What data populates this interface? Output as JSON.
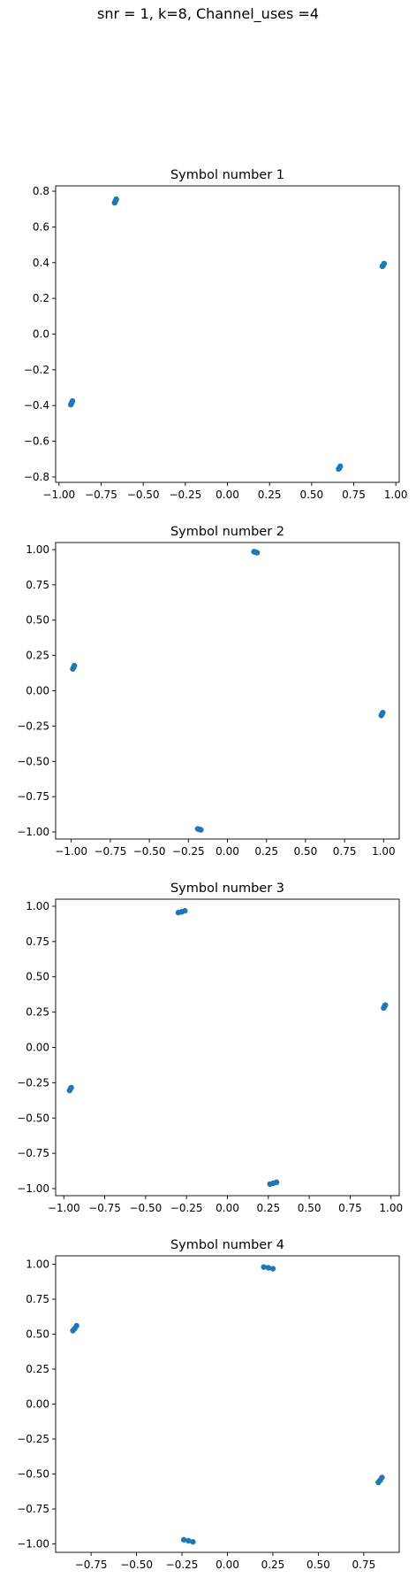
{
  "suptitle": "snr = 1, k=8, Channel_uses =4",
  "colors": {
    "marker": "#1f77b4"
  },
  "chart_data": [
    {
      "type": "scatter",
      "title": "Symbol number 1",
      "xlim": [
        -1.02,
        1.02
      ],
      "ylim": [
        -0.83,
        0.83
      ],
      "xticks": [
        -1.0,
        -0.75,
        -0.5,
        -0.25,
        0.0,
        0.25,
        0.5,
        0.75,
        1.0
      ],
      "xtick_labels": [
        "−1.00",
        "−0.75",
        "−0.50",
        "−0.25",
        "0.00",
        "0.25",
        "0.50",
        "0.75",
        "1.00"
      ],
      "yticks": [
        -0.8,
        -0.6,
        -0.4,
        -0.2,
        0.0,
        0.2,
        0.4,
        0.6,
        0.8
      ],
      "ytick_labels": [
        "−0.8",
        "−0.6",
        "−0.4",
        "−0.2",
        "0.0",
        "0.2",
        "0.4",
        "0.6",
        "0.8"
      ],
      "series": [
        {
          "x": [
            -0.67,
            -0.665,
            -0.66,
            0.92,
            0.925,
            0.93,
            -0.93,
            -0.925,
            -0.92,
            0.66,
            0.665,
            0.67
          ],
          "y": [
            0.735,
            0.745,
            0.755,
            0.38,
            0.385,
            0.395,
            -0.395,
            -0.385,
            -0.375,
            -0.755,
            -0.75,
            -0.74
          ]
        }
      ]
    },
    {
      "type": "scatter",
      "title": "Symbol number 2",
      "xlim": [
        -1.1,
        1.1
      ],
      "ylim": [
        -1.05,
        1.05
      ],
      "xticks": [
        -1.0,
        -0.75,
        -0.5,
        -0.25,
        0.0,
        0.25,
        0.5,
        0.75,
        1.0
      ],
      "xtick_labels": [
        "−1.00",
        "−0.75",
        "−0.50",
        "−0.25",
        "0.00",
        "0.25",
        "0.50",
        "0.75",
        "1.00"
      ],
      "yticks": [
        -1.0,
        -0.75,
        -0.5,
        -0.25,
        0.0,
        0.25,
        0.5,
        0.75,
        1.0
      ],
      "ytick_labels": [
        "−1.00",
        "−0.75",
        "−0.50",
        "−0.25",
        "0.00",
        "0.25",
        "0.50",
        "0.75",
        "1.00"
      ],
      "series": [
        {
          "x": [
            0.17,
            0.18,
            0.19,
            0.985,
            0.99,
            0.995,
            -0.99,
            -0.985,
            -0.98,
            -0.19,
            -0.18,
            -0.17
          ],
          "y": [
            0.985,
            0.982,
            0.978,
            -0.175,
            -0.165,
            -0.155,
            0.155,
            0.165,
            0.178,
            -0.978,
            -0.982,
            -0.985
          ]
        }
      ]
    },
    {
      "type": "scatter",
      "title": "Symbol number 3",
      "xlim": [
        -1.05,
        1.05
      ],
      "ylim": [
        -1.05,
        1.05
      ],
      "xticks": [
        -1.0,
        -0.75,
        -0.5,
        -0.25,
        0.0,
        0.25,
        0.5,
        0.75,
        1.0
      ],
      "xtick_labels": [
        "−1.00",
        "−0.75",
        "−0.50",
        "−0.25",
        "0.00",
        "0.25",
        "0.50",
        "0.75",
        "1.00"
      ],
      "yticks": [
        -1.0,
        -0.75,
        -0.5,
        -0.25,
        0.0,
        0.25,
        0.5,
        0.75,
        1.0
      ],
      "ytick_labels": [
        "−1.00",
        "−0.75",
        "−0.50",
        "−0.25",
        "0.00",
        "0.25",
        "0.50",
        "0.75",
        "1.00"
      ],
      "series": [
        {
          "x": [
            -0.3,
            -0.28,
            -0.26,
            0.955,
            0.96,
            0.965,
            -0.965,
            -0.96,
            -0.955,
            0.26,
            0.28,
            0.3
          ],
          "y": [
            0.955,
            0.96,
            0.968,
            0.28,
            0.29,
            0.3,
            -0.305,
            -0.295,
            -0.285,
            -0.968,
            -0.962,
            -0.955
          ]
        }
      ]
    },
    {
      "type": "scatter",
      "title": "Symbol number 4",
      "xlim": [
        -0.945,
        0.945
      ],
      "ylim": [
        -1.06,
        1.06
      ],
      "xticks": [
        -0.75,
        -0.5,
        -0.25,
        0.0,
        0.25,
        0.5,
        0.75
      ],
      "xtick_labels": [
        "−0.75",
        "−0.50",
        "−0.25",
        "0.00",
        "0.25",
        "0.50",
        "0.75"
      ],
      "yticks": [
        -1.0,
        -0.75,
        -0.5,
        -0.25,
        0.0,
        0.25,
        0.5,
        0.75,
        1.0
      ],
      "ytick_labels": [
        "−1.00",
        "−0.75",
        "−0.50",
        "−0.25",
        "0.00",
        "0.25",
        "0.50",
        "0.75",
        "1.00"
      ],
      "series": [
        {
          "x": [
            0.2,
            0.225,
            0.25,
            0.83,
            0.84,
            0.85,
            -0.85,
            -0.84,
            -0.83,
            -0.24,
            -0.215,
            -0.19
          ],
          "y": [
            0.98,
            0.975,
            0.968,
            -0.56,
            -0.545,
            -0.525,
            0.525,
            0.54,
            0.56,
            -0.97,
            -0.977,
            -0.985
          ]
        }
      ]
    }
  ]
}
